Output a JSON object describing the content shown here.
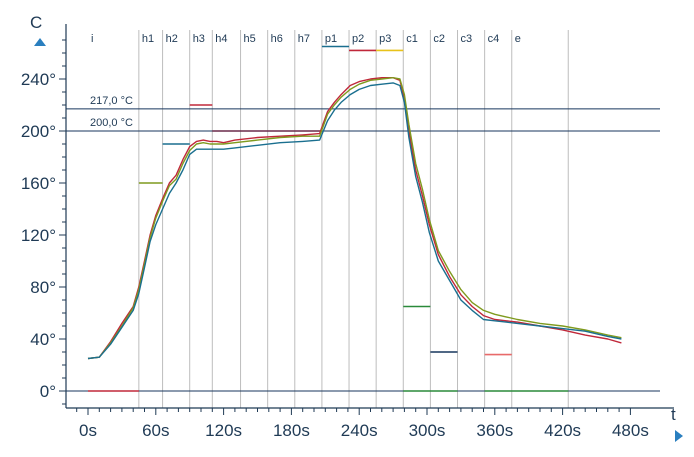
{
  "chart_data": {
    "type": "line",
    "title": "",
    "xlabel": "t",
    "ylabel": "C",
    "xlim": [
      -10,
      480
    ],
    "ylim": [
      -10,
      275
    ],
    "x_ticks": [
      0,
      60,
      120,
      180,
      240,
      300,
      360,
      420,
      480
    ],
    "x_tick_labels": [
      "0s",
      "60s",
      "120s",
      "180s",
      "240s",
      "300s",
      "360s",
      "420s",
      "480s"
    ],
    "y_ticks": [
      0,
      40,
      80,
      120,
      160,
      200,
      240
    ],
    "y_tick_labels": [
      "0°",
      "40°",
      "80°",
      "120°",
      "160°",
      "200°",
      "240°"
    ],
    "zones": [
      {
        "label": "i",
        "start": 0,
        "end": 45
      },
      {
        "label": "h1",
        "start": 45,
        "end": 66
      },
      {
        "label": "h2",
        "start": 66,
        "end": 90
      },
      {
        "label": "h3",
        "start": 90,
        "end": 110
      },
      {
        "label": "h4",
        "start": 110,
        "end": 135
      },
      {
        "label": "h5",
        "start": 135,
        "end": 159
      },
      {
        "label": "h6",
        "start": 159,
        "end": 183
      },
      {
        "label": "h7",
        "start": 183,
        "end": 207
      },
      {
        "label": "p1",
        "start": 207,
        "end": 231
      },
      {
        "label": "p2",
        "start": 231,
        "end": 255
      },
      {
        "label": "p3",
        "start": 255,
        "end": 279
      },
      {
        "label": "c1",
        "start": 279,
        "end": 303
      },
      {
        "label": "c2",
        "start": 303,
        "end": 327
      },
      {
        "label": "c3",
        "start": 327,
        "end": 351
      },
      {
        "label": "c4",
        "start": 351,
        "end": 375
      },
      {
        "label": "e",
        "start": 375,
        "end": 425
      }
    ],
    "reference_lines": [
      {
        "value": 217,
        "label": "217,0 °C"
      },
      {
        "value": 200,
        "label": "200,0 °C"
      },
      {
        "value": 0,
        "label": ""
      }
    ],
    "setpoints": [
      {
        "start": 0,
        "end": 45,
        "value": 0,
        "color": "#c0283a"
      },
      {
        "start": 45,
        "end": 66,
        "value": 160,
        "color": "#7f9a1e"
      },
      {
        "start": 66,
        "end": 90,
        "value": 190,
        "color": "#1a6f8f"
      },
      {
        "start": 90,
        "end": 110,
        "value": 220,
        "color": "#c0283a"
      },
      {
        "start": 110,
        "end": 207,
        "value": 200,
        "color": "#6a2a4a"
      },
      {
        "start": 207,
        "end": 231,
        "value": 265,
        "color": "#1a6f8f"
      },
      {
        "start": 231,
        "end": 255,
        "value": 262,
        "color": "#c0283a"
      },
      {
        "start": 255,
        "end": 279,
        "value": 262,
        "color": "#e8c21a"
      },
      {
        "start": 279,
        "end": 303,
        "value": 65,
        "color": "#2a8a3a"
      },
      {
        "start": 279,
        "end": 327,
        "value": 0,
        "color": "#2a8a3a"
      },
      {
        "start": 303,
        "end": 327,
        "value": 30,
        "color": "#17365d"
      },
      {
        "start": 351,
        "end": 375,
        "value": 28,
        "color": "#e86a6a"
      },
      {
        "start": 351,
        "end": 425,
        "value": 0,
        "color": "#2a8a3a"
      }
    ],
    "series": [
      {
        "color": "#c0283a",
        "x": [
          0,
          10,
          20,
          30,
          40,
          45,
          50,
          55,
          60,
          66,
          72,
          78,
          84,
          90,
          96,
          102,
          108,
          114,
          120,
          130,
          150,
          170,
          190,
          205,
          212,
          218,
          224,
          232,
          240,
          250,
          260,
          270,
          276,
          280,
          284,
          290,
          296,
          302,
          310,
          320,
          330,
          340,
          350,
          360,
          370,
          380,
          400,
          420,
          440,
          460,
          472
        ],
        "y": [
          25,
          26,
          38,
          52,
          65,
          80,
          100,
          120,
          135,
          148,
          160,
          166,
          178,
          188,
          192,
          193,
          192,
          192,
          191,
          193,
          195,
          196,
          197,
          198,
          215,
          222,
          228,
          235,
          238,
          240,
          241,
          241,
          239,
          225,
          200,
          170,
          150,
          128,
          105,
          88,
          74,
          65,
          58,
          55,
          54,
          53,
          50,
          47,
          43,
          40,
          37
        ]
      },
      {
        "color": "#7f9a1e",
        "x": [
          0,
          10,
          20,
          30,
          40,
          45,
          50,
          55,
          60,
          66,
          72,
          78,
          84,
          90,
          96,
          102,
          108,
          114,
          120,
          130,
          150,
          170,
          190,
          205,
          212,
          218,
          224,
          232,
          240,
          250,
          260,
          270,
          276,
          280,
          284,
          290,
          296,
          302,
          310,
          320,
          330,
          340,
          350,
          360,
          370,
          380,
          400,
          420,
          440,
          460,
          472
        ],
        "y": [
          25,
          26,
          37,
          50,
          64,
          78,
          98,
          118,
          133,
          146,
          158,
          163,
          175,
          185,
          190,
          191,
          190,
          190,
          190,
          191,
          193,
          195,
          196,
          196,
          213,
          220,
          226,
          232,
          236,
          239,
          240,
          241,
          240,
          228,
          205,
          175,
          155,
          132,
          108,
          92,
          78,
          68,
          62,
          59,
          57,
          55,
          52,
          50,
          47,
          43,
          41
        ]
      },
      {
        "color": "#1a6f8f",
        "x": [
          0,
          10,
          20,
          30,
          40,
          45,
          50,
          55,
          60,
          66,
          72,
          78,
          84,
          90,
          96,
          102,
          108,
          114,
          120,
          130,
          150,
          170,
          190,
          205,
          212,
          218,
          224,
          232,
          240,
          250,
          260,
          270,
          276,
          280,
          284,
          290,
          296,
          302,
          310,
          320,
          330,
          340,
          350,
          360,
          370,
          380,
          400,
          420,
          440,
          460,
          472
        ],
        "y": [
          25,
          26,
          36,
          49,
          62,
          75,
          95,
          115,
          128,
          140,
          152,
          160,
          170,
          182,
          186,
          186,
          186,
          186,
          186,
          187,
          189,
          191,
          192,
          193,
          208,
          216,
          222,
          228,
          232,
          235,
          236,
          237,
          235,
          222,
          195,
          165,
          145,
          122,
          100,
          85,
          70,
          62,
          55,
          54,
          53,
          52,
          50,
          48,
          46,
          42,
          40
        ]
      }
    ]
  },
  "colors": {
    "axis": "#1f3a55",
    "accent": "#2a7fbf",
    "grid": "#d8d8d8",
    "ref_line": "#17365d"
  }
}
